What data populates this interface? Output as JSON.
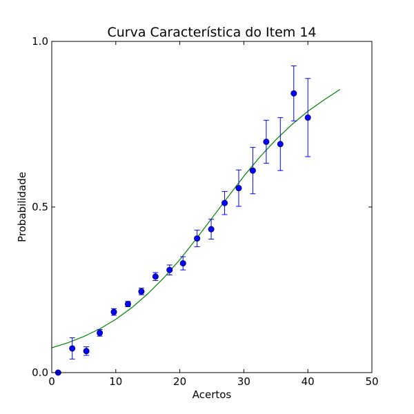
{
  "chart_data": {
    "type": "scatter",
    "title": "Curva Característica do Item 14",
    "xlabel": "Acertos",
    "ylabel": "Probabilidade",
    "xlim": [
      0,
      50
    ],
    "ylim": [
      0.0,
      1.0
    ],
    "x_ticks": [
      0,
      10,
      20,
      30,
      40,
      50
    ],
    "x_tick_labels": [
      "0",
      "10",
      "20",
      "30",
      "40",
      "50"
    ],
    "y_ticks": [
      0.0,
      0.5,
      1.0
    ],
    "y_tick_labels": [
      "0.0",
      "0.5",
      "1.0"
    ],
    "grid": false,
    "legend": "none",
    "series": [
      {
        "kind": "points-with-error-bars",
        "color": "#0000ff",
        "points": [
          {
            "x": 1.0,
            "y": 0.0,
            "err_low": 0.0,
            "err_high": 0.0
          },
          {
            "x": 3.2,
            "y": 0.073,
            "err_low": 0.032,
            "err_high": 0.032
          },
          {
            "x": 5.4,
            "y": 0.065,
            "err_low": 0.013,
            "err_high": 0.013
          },
          {
            "x": 7.5,
            "y": 0.12,
            "err_low": 0.01,
            "err_high": 0.01
          },
          {
            "x": 9.7,
            "y": 0.183,
            "err_low": 0.01,
            "err_high": 0.01
          },
          {
            "x": 11.9,
            "y": 0.207,
            "err_low": 0.008,
            "err_high": 0.008
          },
          {
            "x": 14.0,
            "y": 0.245,
            "err_low": 0.01,
            "err_high": 0.01
          },
          {
            "x": 16.2,
            "y": 0.29,
            "err_low": 0.012,
            "err_high": 0.012
          },
          {
            "x": 18.4,
            "y": 0.31,
            "err_low": 0.015,
            "err_high": 0.015
          },
          {
            "x": 20.5,
            "y": 0.33,
            "err_low": 0.02,
            "err_high": 0.02
          },
          {
            "x": 22.7,
            "y": 0.405,
            "err_low": 0.025,
            "err_high": 0.025
          },
          {
            "x": 24.9,
            "y": 0.433,
            "err_low": 0.03,
            "err_high": 0.03
          },
          {
            "x": 27.0,
            "y": 0.512,
            "err_low": 0.035,
            "err_high": 0.035
          },
          {
            "x": 29.2,
            "y": 0.557,
            "err_low": 0.055,
            "err_high": 0.055
          },
          {
            "x": 31.4,
            "y": 0.61,
            "err_low": 0.07,
            "err_high": 0.07
          },
          {
            "x": 33.5,
            "y": 0.697,
            "err_low": 0.065,
            "err_high": 0.065
          },
          {
            "x": 35.7,
            "y": 0.69,
            "err_low": 0.08,
            "err_high": 0.08
          },
          {
            "x": 37.8,
            "y": 0.843,
            "err_low": 0.083,
            "err_high": 0.083
          },
          {
            "x": 40.0,
            "y": 0.77,
            "err_low": 0.118,
            "err_high": 0.118
          }
        ]
      },
      {
        "kind": "fitted-curve",
        "color": "#008000",
        "x": [
          0,
          2.5,
          5,
          7.5,
          10,
          12.5,
          15,
          17.5,
          20,
          22.5,
          25,
          27.5,
          30,
          32.5,
          35,
          37.5,
          40,
          42.5,
          45
        ],
        "y": [
          0.075,
          0.09,
          0.109,
          0.132,
          0.161,
          0.196,
          0.238,
          0.286,
          0.341,
          0.402,
          0.466,
          0.53,
          0.593,
          0.651,
          0.703,
          0.749,
          0.789,
          0.823,
          0.855
        ]
      }
    ]
  }
}
